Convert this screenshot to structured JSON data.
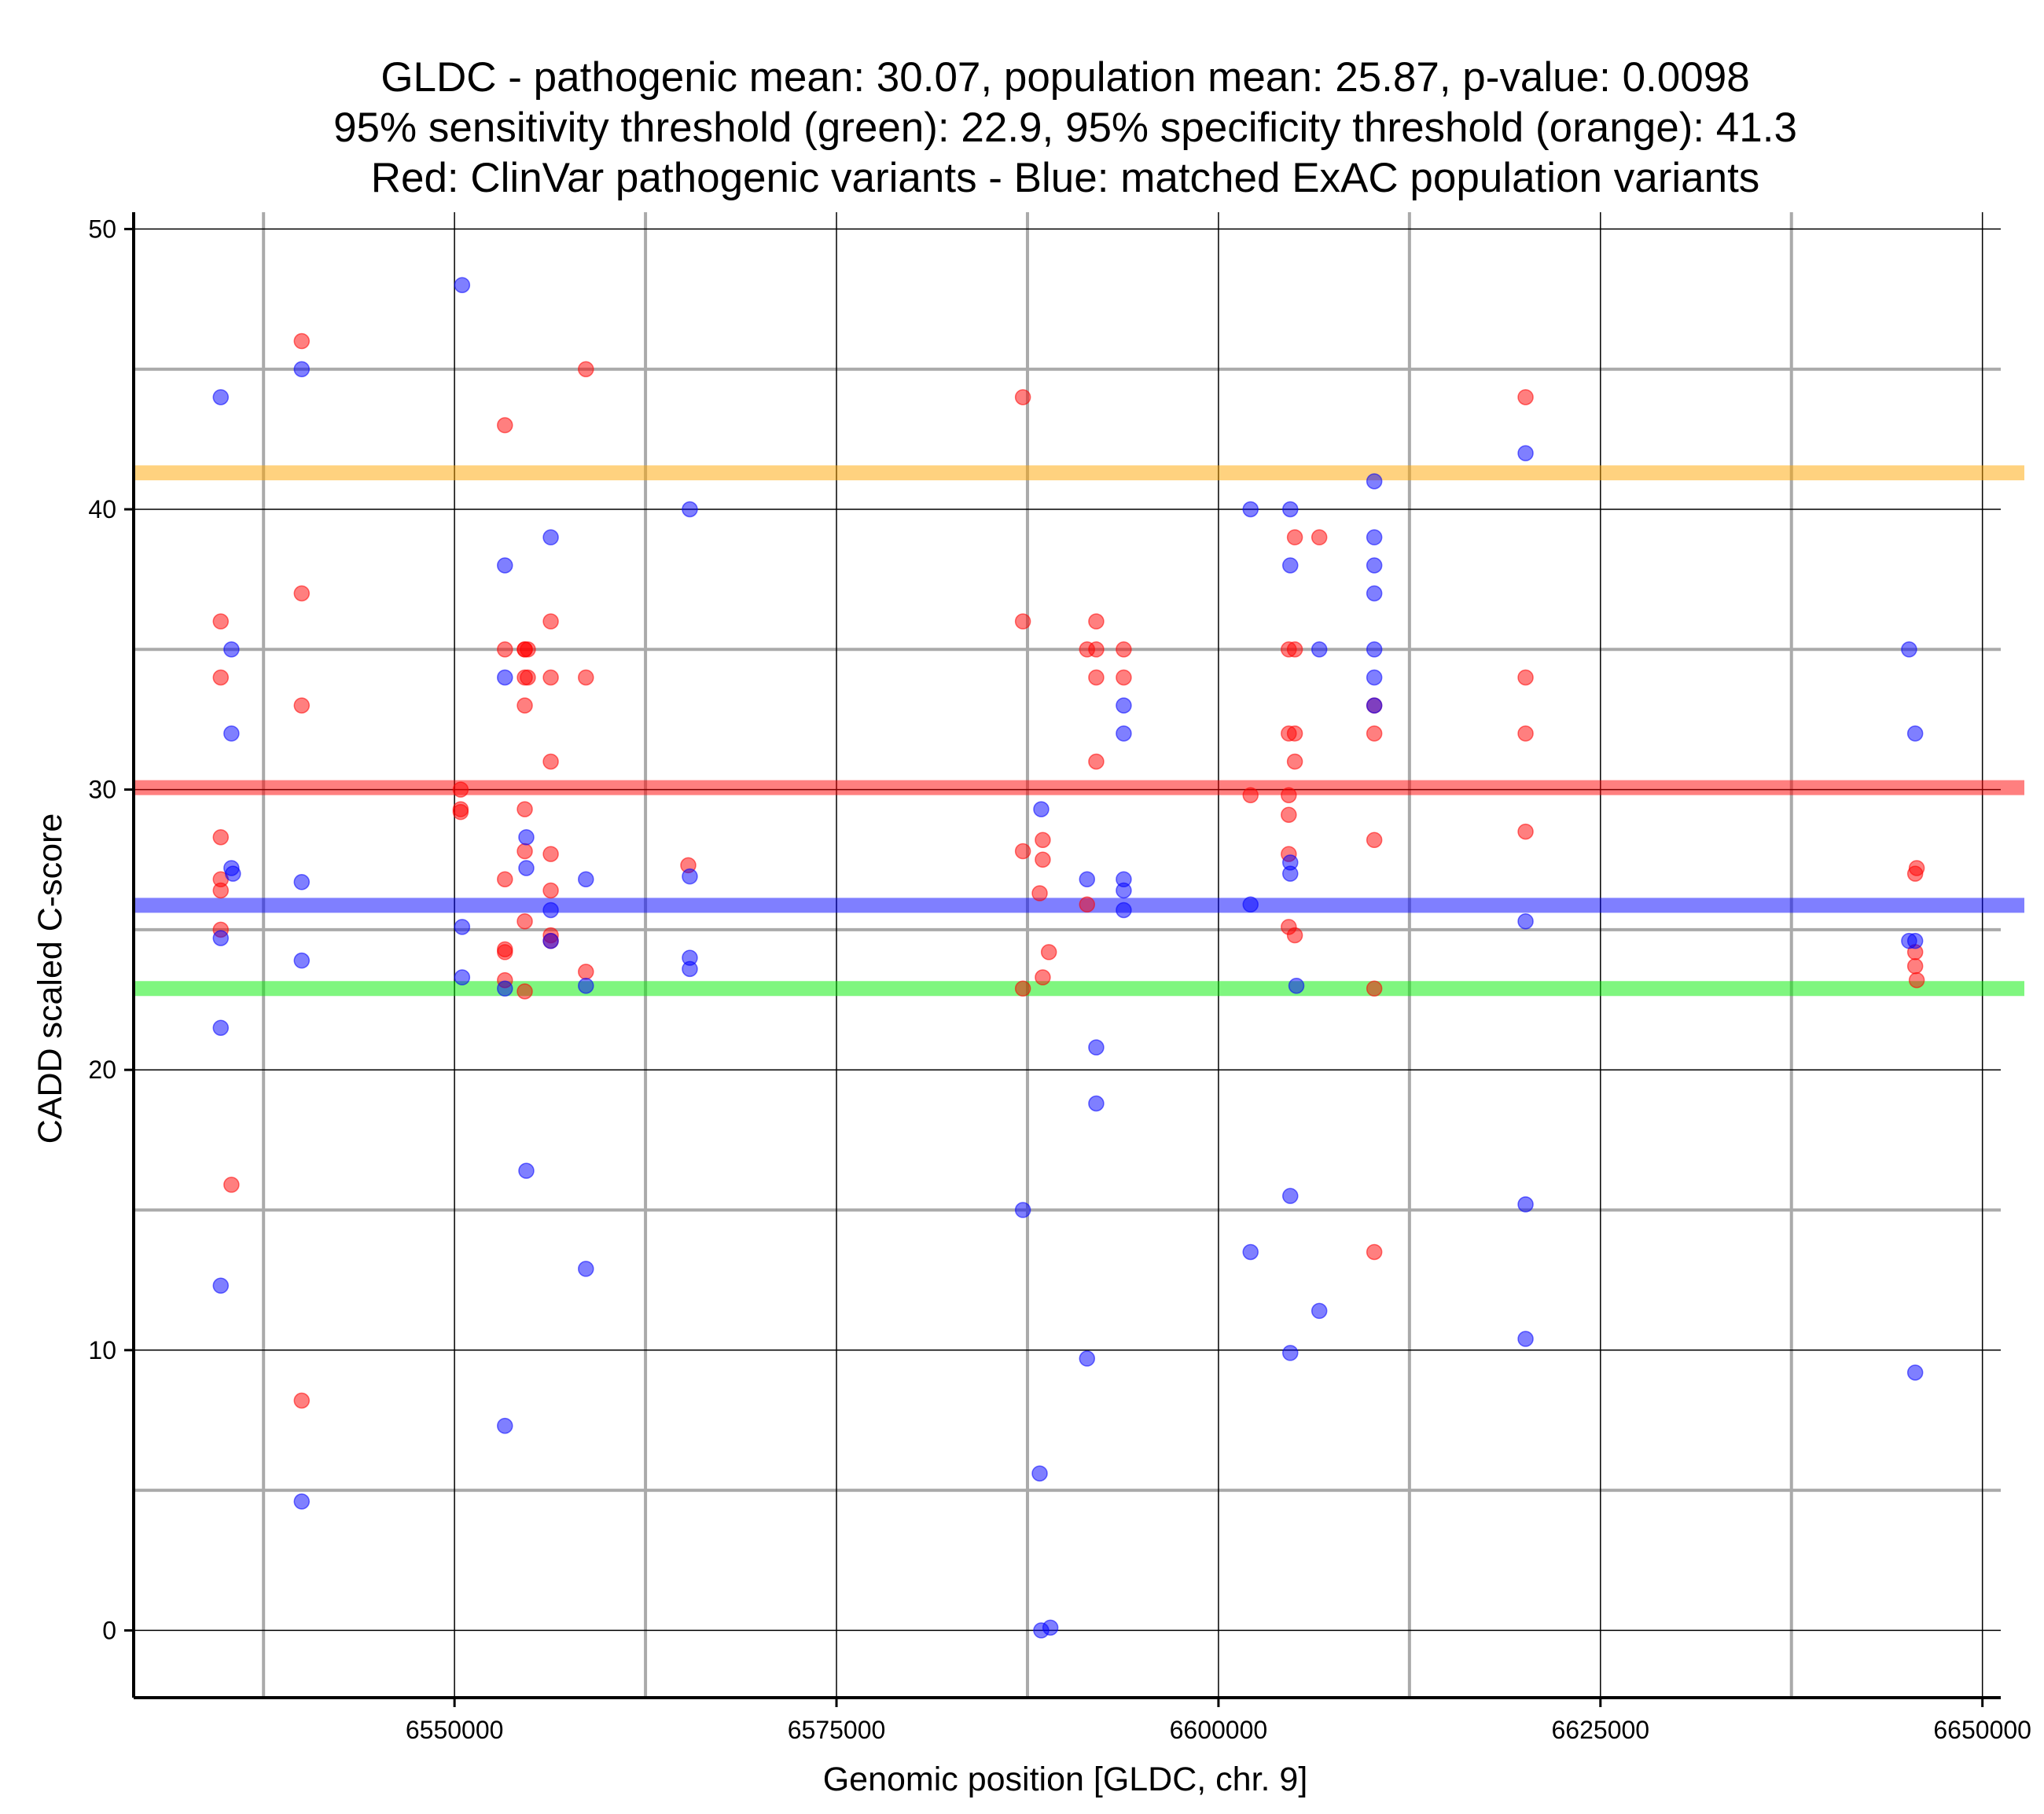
{
  "chart_data": {
    "type": "scatter",
    "title_lines": [
      "GLDC - pathogenic mean: 30.07, population mean: 25.87, p-value: 0.0098",
      "95% sensitivity threshold (green): 22.9, 95% specificity threshold (orange): 41.3",
      "Red: ClinVar pathogenic variants - Blue: matched ExAC population variants"
    ],
    "xlabel": "Genomic position [GLDC, chr. 9]",
    "ylabel": "CADD scaled C-score",
    "xlim": [
      6529000,
      6651200
    ],
    "ylim": [
      -2.4,
      50.6
    ],
    "x_ticks": [
      6550000,
      6575000,
      6600000,
      6625000,
      6650000
    ],
    "x_tick_labels": [
      "6550000",
      "6575000",
      "6600000",
      "6625000",
      "6650000"
    ],
    "x_minor": [
      6537500,
      6562500,
      6587500,
      6612500,
      6637500
    ],
    "y_ticks": [
      0,
      10,
      20,
      30,
      40,
      50
    ],
    "y_tick_labels": [
      "0",
      "10",
      "20",
      "30",
      "40",
      "50"
    ],
    "y_minor": [
      5,
      15,
      25,
      35,
      45
    ],
    "colors": {
      "pathogenic": "#ff0000",
      "population": "#0000ff",
      "pathogenic_mean": "#ff0000",
      "population_mean": "#0000ff",
      "sensitivity": "#00ee00",
      "specificity": "#ffa500",
      "major_grid": "#000000",
      "minor_grid": "#aaaaaa"
    },
    "reference_lines": [
      {
        "name": "specificity-threshold",
        "y": 41.3,
        "color": "#ffa500"
      },
      {
        "name": "pathogenic-mean",
        "y": 30.07,
        "color": "#ff0000"
      },
      {
        "name": "population-mean",
        "y": 25.87,
        "color": "#0000ff"
      },
      {
        "name": "sensitivity-threshold",
        "y": 22.9,
        "color": "#00ee00"
      }
    ],
    "series": [
      {
        "name": "ClinVar pathogenic",
        "color": "#ff0000",
        "points": [
          [
            6534700,
            36
          ],
          [
            6534700,
            34
          ],
          [
            6534700,
            28.3
          ],
          [
            6534700,
            26.8
          ],
          [
            6534700,
            26.4
          ],
          [
            6534700,
            25
          ],
          [
            6535400,
            15.9
          ],
          [
            6540000,
            46
          ],
          [
            6540000,
            37
          ],
          [
            6540000,
            33
          ],
          [
            6540000,
            8.2
          ],
          [
            6550400,
            30
          ],
          [
            6550400,
            29.3
          ],
          [
            6550400,
            29.2
          ],
          [
            6553300,
            43
          ],
          [
            6553300,
            35
          ],
          [
            6553300,
            26.8
          ],
          [
            6553300,
            24.3
          ],
          [
            6553300,
            24.2
          ],
          [
            6553300,
            23.2
          ],
          [
            6554600,
            35
          ],
          [
            6554600,
            35
          ],
          [
            6554600,
            34
          ],
          [
            6554600,
            33
          ],
          [
            6554600,
            29.3
          ],
          [
            6554600,
            27.8
          ],
          [
            6554600,
            25.3
          ],
          [
            6554600,
            22.8
          ],
          [
            6554800,
            34
          ],
          [
            6554800,
            35
          ],
          [
            6556300,
            36
          ],
          [
            6556300,
            34
          ],
          [
            6556300,
            31
          ],
          [
            6556300,
            27.7
          ],
          [
            6556300,
            26.4
          ],
          [
            6556300,
            24.8
          ],
          [
            6556300,
            24.6
          ],
          [
            6558600,
            45
          ],
          [
            6558600,
            34
          ],
          [
            6558600,
            23.5
          ],
          [
            6565300,
            27.3
          ],
          [
            6587200,
            44
          ],
          [
            6587200,
            36
          ],
          [
            6587200,
            27.8
          ],
          [
            6587200,
            22.9
          ],
          [
            6588300,
            26.3
          ],
          [
            6588500,
            28.2
          ],
          [
            6588500,
            27.5
          ],
          [
            6588500,
            23.3
          ],
          [
            6588900,
            24.2
          ],
          [
            6591400,
            35
          ],
          [
            6591400,
            25.9
          ],
          [
            6592000,
            36
          ],
          [
            6592000,
            35
          ],
          [
            6592000,
            34
          ],
          [
            6592000,
            31
          ],
          [
            6593800,
            35
          ],
          [
            6593800,
            34
          ],
          [
            6602100,
            29.8
          ],
          [
            6604600,
            35
          ],
          [
            6604600,
            32
          ],
          [
            6604600,
            29.8
          ],
          [
            6604600,
            29.1
          ],
          [
            6604600,
            27.7
          ],
          [
            6604600,
            25.1
          ],
          [
            6605000,
            39
          ],
          [
            6605000,
            35
          ],
          [
            6605000,
            32
          ],
          [
            6605000,
            31
          ],
          [
            6605000,
            24.8
          ],
          [
            6606600,
            39
          ],
          [
            6610200,
            33
          ],
          [
            6610200,
            32
          ],
          [
            6610200,
            28.2
          ],
          [
            6610200,
            22.9
          ],
          [
            6610200,
            13.5
          ],
          [
            6620100,
            44
          ],
          [
            6620100,
            34
          ],
          [
            6620100,
            32
          ],
          [
            6620100,
            28.5
          ],
          [
            6645600,
            27
          ],
          [
            6645600,
            24.2
          ],
          [
            6645600,
            23.7
          ],
          [
            6645700,
            27.2
          ],
          [
            6645700,
            23.2
          ]
        ]
      },
      {
        "name": "ExAC population",
        "color": "#0000ff",
        "points": [
          [
            6534700,
            44
          ],
          [
            6534700,
            24.7
          ],
          [
            6534700,
            21.5
          ],
          [
            6534700,
            12.3
          ],
          [
            6535400,
            35
          ],
          [
            6535400,
            32
          ],
          [
            6535400,
            27.2
          ],
          [
            6535500,
            27
          ],
          [
            6540000,
            45
          ],
          [
            6540000,
            26.7
          ],
          [
            6540000,
            23.9
          ],
          [
            6540000,
            4.6
          ],
          [
            6550500,
            48
          ],
          [
            6550500,
            25.1
          ],
          [
            6550500,
            23.3
          ],
          [
            6553300,
            38
          ],
          [
            6553300,
            34
          ],
          [
            6553300,
            22.9
          ],
          [
            6553300,
            7.3
          ],
          [
            6554700,
            28.3
          ],
          [
            6554700,
            27.2
          ],
          [
            6554700,
            16.4
          ],
          [
            6556300,
            39
          ],
          [
            6556300,
            25.7
          ],
          [
            6556300,
            24.6
          ],
          [
            6558600,
            26.8
          ],
          [
            6558600,
            23
          ],
          [
            6558600,
            12.9
          ],
          [
            6565400,
            40
          ],
          [
            6565400,
            26.9
          ],
          [
            6565400,
            24
          ],
          [
            6565400,
            23.6
          ],
          [
            6587200,
            15
          ],
          [
            6588300,
            5.6
          ],
          [
            6588400,
            29.3
          ],
          [
            6588400,
            0
          ],
          [
            6589000,
            0.1
          ],
          [
            6591400,
            26.8
          ],
          [
            6591400,
            9.7
          ],
          [
            6592000,
            20.8
          ],
          [
            6592000,
            18.8
          ],
          [
            6593800,
            33
          ],
          [
            6593800,
            32
          ],
          [
            6593800,
            26.8
          ],
          [
            6593800,
            26.4
          ],
          [
            6593800,
            25.7
          ],
          [
            6602100,
            40
          ],
          [
            6602100,
            25.9
          ],
          [
            6602100,
            13.5
          ],
          [
            6604700,
            40
          ],
          [
            6604700,
            38
          ],
          [
            6604700,
            27.4
          ],
          [
            6604700,
            27
          ],
          [
            6604700,
            15.5
          ],
          [
            6604700,
            9.9
          ],
          [
            6605100,
            23
          ],
          [
            6606600,
            35
          ],
          [
            6606600,
            11.4
          ],
          [
            6610200,
            41
          ],
          [
            6610200,
            39
          ],
          [
            6610200,
            38
          ],
          [
            6610200,
            37
          ],
          [
            6610200,
            35
          ],
          [
            6610200,
            34
          ],
          [
            6610200,
            33
          ],
          [
            6620100,
            42
          ],
          [
            6620100,
            25.3
          ],
          [
            6620100,
            15.2
          ],
          [
            6620100,
            10.4
          ],
          [
            6645200,
            35
          ],
          [
            6645200,
            24.6
          ],
          [
            6645600,
            32
          ],
          [
            6645600,
            24.6
          ],
          [
            6645600,
            9.2
          ]
        ]
      }
    ]
  }
}
